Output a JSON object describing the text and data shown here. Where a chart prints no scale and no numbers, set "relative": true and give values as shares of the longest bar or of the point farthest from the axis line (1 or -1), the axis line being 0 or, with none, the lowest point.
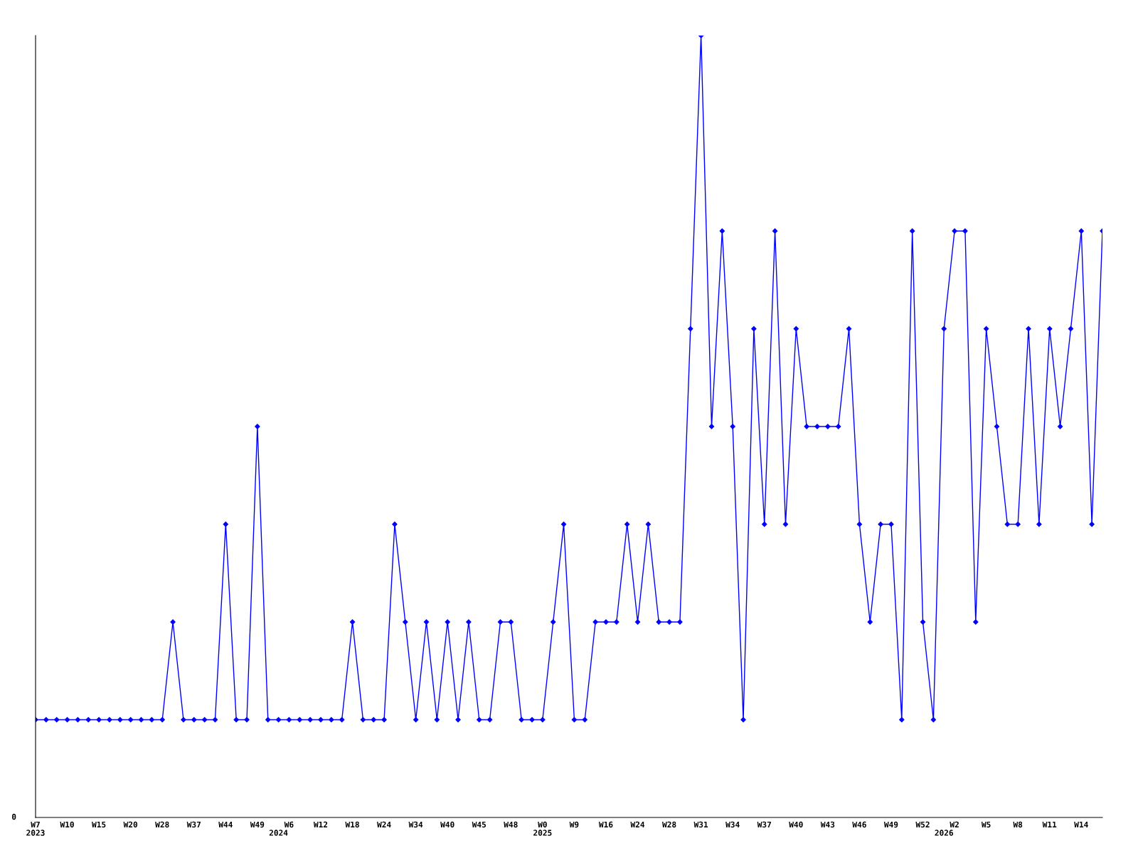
{
  "chart_data": {
    "type": "line",
    "relative": true,
    "marker": "diamond",
    "line_style": "solid",
    "grid": false,
    "legend": false,
    "annotations": [
      "0"
    ],
    "categories": [
      "W7\n2023",
      null,
      null,
      "W10",
      null,
      null,
      "W15",
      null,
      null,
      "W20",
      null,
      null,
      "W28",
      null,
      null,
      "W37",
      null,
      null,
      "W44",
      null,
      null,
      "W49",
      null,
      "\n2024",
      "W6",
      null,
      null,
      "W12",
      null,
      null,
      "W18",
      null,
      null,
      "W24",
      null,
      null,
      "W34",
      null,
      null,
      "W40",
      null,
      null,
      "W45",
      null,
      null,
      "W48",
      null,
      null,
      "W0\n2025",
      null,
      null,
      "W9",
      null,
      null,
      "W16",
      null,
      null,
      "W24",
      null,
      null,
      "W28",
      null,
      null,
      "W31",
      null,
      null,
      "W34",
      null,
      null,
      "W37",
      null,
      null,
      "W40",
      null,
      null,
      "W43",
      null,
      null,
      "W46",
      null,
      null,
      "W49",
      null,
      null,
      "W52",
      null,
      "\n2026",
      "W2",
      null,
      null,
      "W5",
      null,
      null,
      "W8",
      null,
      null,
      "W11",
      null,
      null,
      "W14",
      null,
      null
    ],
    "series": [
      {
        "color": "#0000ff",
        "values": [
          0.125,
          0.125,
          0.125,
          0.125,
          0.125,
          0.125,
          0.125,
          0.125,
          0.125,
          0.125,
          0.125,
          0.125,
          0.125,
          0.25,
          0.125,
          0.125,
          0.125,
          0.125,
          0.375,
          0.125,
          0.125,
          0.5,
          0.125,
          0.125,
          0.125,
          0.125,
          0.125,
          0.125,
          0.125,
          0.125,
          0.25,
          0.125,
          0.125,
          0.125,
          0.375,
          0.25,
          0.125,
          0.25,
          0.125,
          0.25,
          0.125,
          0.25,
          0.125,
          0.125,
          0.25,
          0.25,
          0.125,
          0.125,
          0.125,
          0.25,
          0.375,
          0.125,
          0.125,
          0.25,
          0.25,
          0.25,
          0.375,
          0.25,
          0.375,
          0.25,
          0.25,
          0.25,
          0.625,
          1,
          0.5,
          0.75,
          0.5,
          0.125,
          0.625,
          0.375,
          0.75,
          0.375,
          0.625,
          0.5,
          0.5,
          0.5,
          0.5,
          0.625,
          0.375,
          0.25,
          0.375,
          0.375,
          0.125,
          0.75,
          0.25,
          0.125,
          0.625,
          0.75,
          0.75,
          0.25,
          0.625,
          0.5,
          0.375,
          0.375,
          0.625,
          0.375,
          0.625,
          0.5,
          0.625,
          0.75,
          0.375,
          0.75
        ]
      }
    ]
  }
}
